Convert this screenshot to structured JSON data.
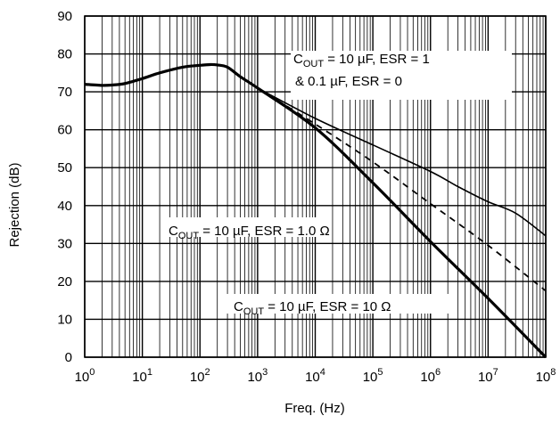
{
  "chart_data": {
    "type": "line",
    "xlabel": "Freq. (Hz)",
    "ylabel": "Rejection (dB)",
    "x_scale": "log",
    "xlim": [
      1,
      100000000
    ],
    "ylim": [
      0,
      90
    ],
    "grid": true,
    "x_ticks": [
      {
        "base": "10",
        "exp": "0",
        "value": 1
      },
      {
        "base": "10",
        "exp": "1",
        "value": 10
      },
      {
        "base": "10",
        "exp": "2",
        "value": 100
      },
      {
        "base": "10",
        "exp": "3",
        "value": 1000
      },
      {
        "base": "10",
        "exp": "4",
        "value": 10000
      },
      {
        "base": "10",
        "exp": "5",
        "value": 100000
      },
      {
        "base": "10",
        "exp": "6",
        "value": 1000000
      },
      {
        "base": "10",
        "exp": "7",
        "value": 10000000
      },
      {
        "base": "10",
        "exp": "8",
        "value": 100000000
      }
    ],
    "y_ticks": [
      "0",
      "10",
      "20",
      "30",
      "40",
      "50",
      "60",
      "70",
      "80",
      "90"
    ],
    "series": [
      {
        "style": "thick-solid",
        "x": [
          1,
          2,
          3,
          5,
          10,
          20,
          50,
          100,
          150,
          200,
          300,
          500,
          1000,
          10000,
          100000,
          1000000,
          10000000,
          100000000
        ],
        "y": [
          72,
          71.7,
          71.8,
          72.2,
          73.5,
          75,
          76.5,
          77,
          77.2,
          77.1,
          76.5,
          74,
          71,
          60.5,
          46,
          30.5,
          15.5,
          0
        ]
      },
      {
        "style": "dashed",
        "x": [
          1000,
          10000,
          100000,
          1000000,
          10000000,
          100000000
        ],
        "y": [
          71,
          61.5,
          51.5,
          40.5,
          29.5,
          17.5
        ]
      },
      {
        "style": "thin-solid",
        "x": [
          1000,
          10000,
          100000,
          1000000,
          3000000,
          10000000,
          30000000,
          100000000
        ],
        "y": [
          71,
          63,
          56,
          49,
          45,
          41,
          38,
          32
        ]
      }
    ],
    "annotations": [
      {
        "line1": {
          "pre": "C",
          "sub": "OUT",
          "post": " = 10 µF, ESR = 1"
        },
        "line2": "& 0.1 µF, ESR = 0"
      },
      {
        "line1": {
          "pre": "C",
          "sub": "OUT",
          "post": " = 10 µF, ESR = 1.0 Ω"
        }
      },
      {
        "line1": {
          "pre": "C",
          "sub": "OUT",
          "post": " = 10 µF, ESR = 10 Ω"
        }
      }
    ]
  }
}
